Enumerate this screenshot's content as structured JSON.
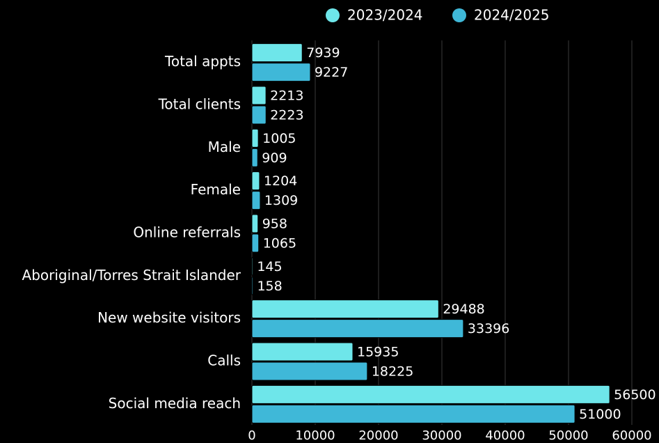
{
  "chart_data": {
    "type": "bar",
    "orientation": "horizontal",
    "categories": [
      "Total appts",
      "Total clients",
      "Male",
      "Female",
      "Online referrals",
      "Aboriginal/Torres Strait Islander",
      "New website visitors",
      "Calls",
      "Social media reach"
    ],
    "series": [
      {
        "name": "2023/2024",
        "color": "#6ee6ea",
        "values": [
          7939,
          2213,
          1005,
          1204,
          958,
          145,
          29488,
          15935,
          56500
        ]
      },
      {
        "name": "2024/2025",
        "color": "#3fb8d8",
        "values": [
          9227,
          2223,
          909,
          1309,
          1065,
          158,
          33396,
          18225,
          51000
        ]
      }
    ],
    "xlim": [
      0,
      60000
    ],
    "xticks": [
      0,
      10000,
      20000,
      30000,
      40000,
      50000,
      60000
    ],
    "grid": true,
    "legend": "top",
    "data_labels": true
  }
}
